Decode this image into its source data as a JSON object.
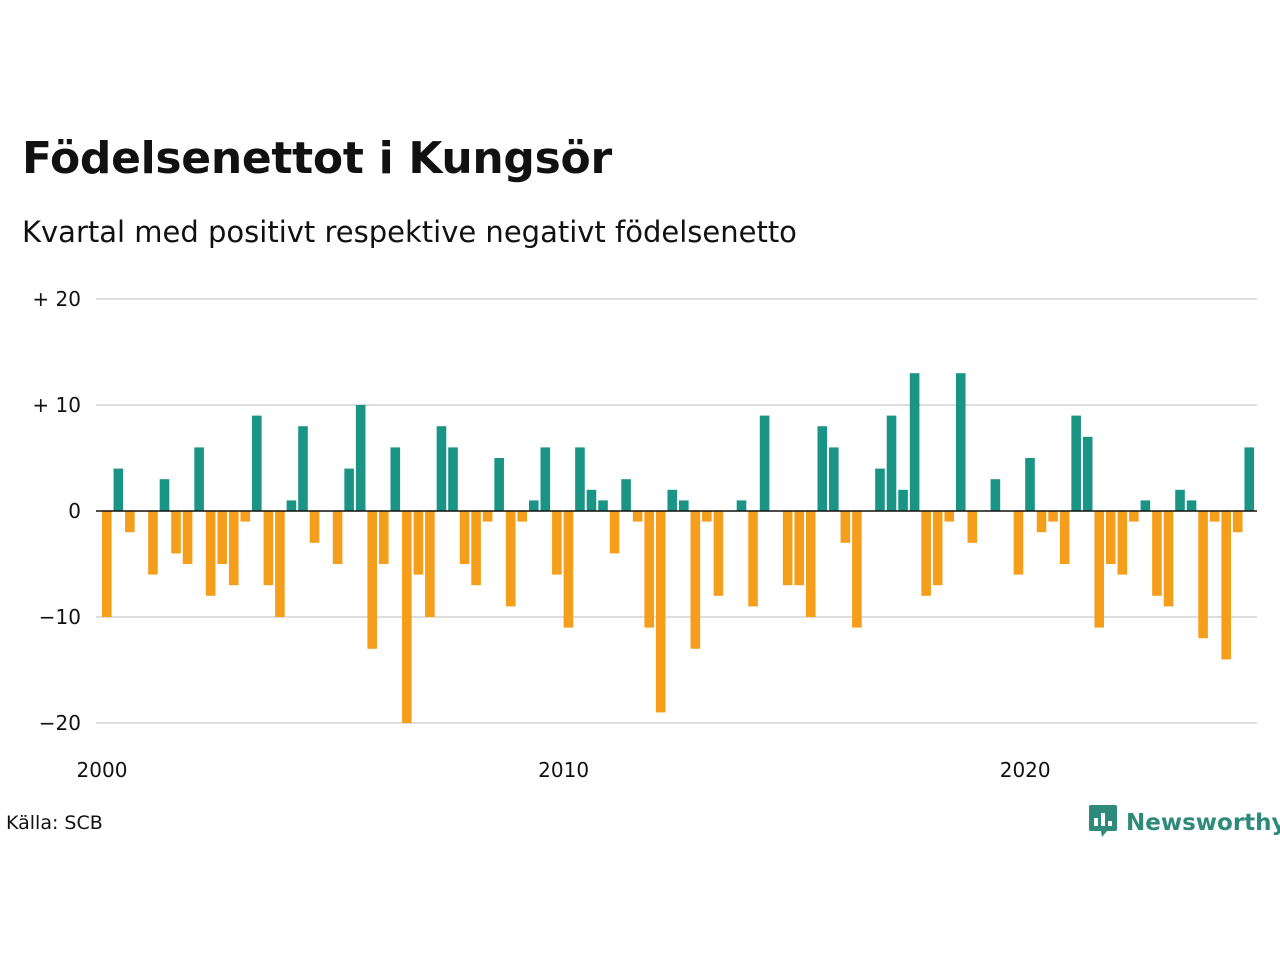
{
  "title": "Födelsenettot i Kungsör",
  "subtitle": "Kvartal med positivt respektive negativt födelsenetto",
  "source": "Källa: SCB",
  "brand": {
    "name": "Newsworthy",
    "icon": "newsworthy-logo-icon",
    "color": "#2e8b7a"
  },
  "colors": {
    "positive": "#1a9485",
    "negative": "#f59e1b",
    "grid": "#dddddd",
    "zero": "#111111"
  },
  "chart_data": {
    "type": "bar",
    "title": "Födelsenettot i Kungsör",
    "subtitle": "Kvartal med positivt respektive negativt födelsenetto",
    "x_start": "2000-Q1",
    "x_ticks": [
      {
        "year": 2000,
        "label": "2000"
      },
      {
        "year": 2010,
        "label": "2010"
      },
      {
        "year": 2020,
        "label": "2020"
      }
    ],
    "y_ticks": [
      {
        "value": 20,
        "label": "+ 20"
      },
      {
        "value": 10,
        "label": "+ 10"
      },
      {
        "value": 0,
        "label": "0"
      },
      {
        "value": -10,
        "label": "−10"
      },
      {
        "value": -20,
        "label": "−20"
      }
    ],
    "ylim": [
      -20,
      20
    ],
    "grid": true,
    "values": [
      -10,
      4,
      -2,
      0,
      -6,
      3,
      -4,
      -5,
      6,
      -8,
      -5,
      -7,
      -1,
      9,
      -7,
      -10,
      1,
      8,
      -3,
      0,
      -5,
      4,
      10,
      -13,
      -5,
      6,
      -20,
      -6,
      -10,
      8,
      6,
      -5,
      -7,
      -1,
      5,
      -9,
      -1,
      1,
      6,
      -6,
      -11,
      6,
      2,
      1,
      -4,
      3,
      -1,
      -11,
      -19,
      2,
      1,
      -13,
      -1,
      -8,
      0,
      1,
      -9,
      9,
      0,
      -7,
      -7,
      -10,
      8,
      6,
      -3,
      -11,
      0,
      4,
      9,
      2,
      13,
      -8,
      -7,
      -1,
      13,
      -3,
      0,
      3,
      0,
      -6,
      5,
      -2,
      -1,
      -5,
      9,
      7,
      -11,
      -5,
      -6,
      -1,
      1,
      -8,
      -9,
      2,
      1,
      -12,
      -1,
      -14,
      -2,
      6
    ]
  }
}
